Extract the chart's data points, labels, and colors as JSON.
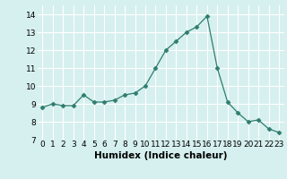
{
  "x": [
    0,
    1,
    2,
    3,
    4,
    5,
    6,
    7,
    8,
    9,
    10,
    11,
    12,
    13,
    14,
    15,
    16,
    17,
    18,
    19,
    20,
    21,
    22,
    23
  ],
  "y": [
    8.8,
    9.0,
    8.9,
    8.9,
    9.5,
    9.1,
    9.1,
    9.2,
    9.5,
    9.6,
    10.0,
    11.0,
    12.0,
    12.5,
    13.0,
    13.3,
    13.9,
    11.0,
    9.1,
    8.5,
    8.0,
    8.1,
    7.6,
    7.4
  ],
  "line_color": "#2e7d6e",
  "marker": "D",
  "marker_size": 2.5,
  "bg_color": "#d6f0ef",
  "grid_color": "#ffffff",
  "xlabel": "Humidex (Indice chaleur)",
  "ylim": [
    7,
    14.5
  ],
  "xlim": [
    -0.5,
    23.5
  ],
  "yticks": [
    7,
    8,
    9,
    10,
    11,
    12,
    13,
    14
  ],
  "xticks": [
    0,
    1,
    2,
    3,
    4,
    5,
    6,
    7,
    8,
    9,
    10,
    11,
    12,
    13,
    14,
    15,
    16,
    17,
    18,
    19,
    20,
    21,
    22,
    23
  ],
  "xlabel_fontsize": 7.5,
  "tick_fontsize": 6.5
}
